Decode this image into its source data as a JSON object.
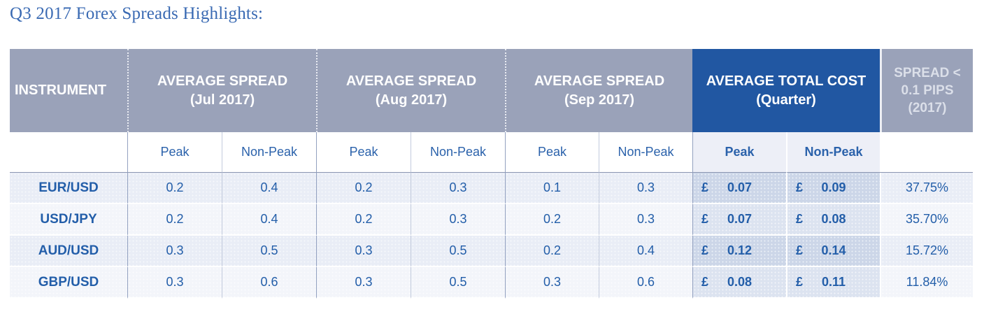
{
  "title": "Q3 2017 Forex Spreads Highlights:",
  "header": {
    "instrument": "INSTRUMENT",
    "jul": {
      "line1": "AVERAGE SPREAD",
      "line2": "(Jul 2017)"
    },
    "aug": {
      "line1": "AVERAGE SPREAD",
      "line2": "(Aug 2017)"
    },
    "sep": {
      "line1": "AVERAGE SPREAD",
      "line2": "(Sep 2017)"
    },
    "cost": {
      "line1": "AVERAGE TOTAL COST",
      "line2": "(Quarter)"
    },
    "pct": {
      "line1": "SPREAD <",
      "line2": "0.1 PIPS",
      "line3": "(2017)"
    }
  },
  "subheader": {
    "peak": "Peak",
    "non_peak": "Non-Peak"
  },
  "currency": "£",
  "rows": [
    {
      "instrument": "EUR/USD",
      "jul_peak": "0.2",
      "jul_non_peak": "0.4",
      "aug_peak": "0.2",
      "aug_non_peak": "0.3",
      "sep_peak": "0.1",
      "sep_non_peak": "0.3",
      "cost_peak": "0.07",
      "cost_non_peak": "0.09",
      "spread_pct": "37.75%"
    },
    {
      "instrument": "USD/JPY",
      "jul_peak": "0.2",
      "jul_non_peak": "0.4",
      "aug_peak": "0.2",
      "aug_non_peak": "0.3",
      "sep_peak": "0.2",
      "sep_non_peak": "0.3",
      "cost_peak": "0.07",
      "cost_non_peak": "0.08",
      "spread_pct": "35.70%"
    },
    {
      "instrument": "AUD/USD",
      "jul_peak": "0.3",
      "jul_non_peak": "0.5",
      "aug_peak": "0.3",
      "aug_non_peak": "0.5",
      "sep_peak": "0.2",
      "sep_non_peak": "0.4",
      "cost_peak": "0.12",
      "cost_non_peak": "0.14",
      "spread_pct": "15.72%"
    },
    {
      "instrument": "GBP/USD",
      "jul_peak": "0.3",
      "jul_non_peak": "0.6",
      "aug_peak": "0.3",
      "aug_non_peak": "0.5",
      "sep_peak": "0.3",
      "sep_non_peak": "0.6",
      "cost_peak": "0.08",
      "cost_non_peak": "0.11",
      "spread_pct": "11.84%"
    }
  ],
  "colors": {
    "header_gray": "#9aa2b9",
    "header_highlight_blue": "#2157a2",
    "header_text": "#ffffff",
    "pct_header_text": "#dbdfe9",
    "title_blue": "#3a6ab3",
    "data_text_blue": "#235ea9",
    "row_odd_bg": "#e9edf6",
    "row_even_bg": "#f3f5fa",
    "cost_odd_bg": "#ccd6e8",
    "cost_even_bg": "#dce3f0",
    "cost_subheader_bg": "#edeff7"
  },
  "chart_data": {
    "type": "table",
    "title": "Q3 2017 Forex Spreads Highlights:",
    "column_groups": [
      "INSTRUMENT",
      "AVERAGE SPREAD (Jul 2017)",
      "AVERAGE SPREAD (Aug 2017)",
      "AVERAGE SPREAD (Sep 2017)",
      "AVERAGE TOTAL COST (Quarter)",
      "SPREAD < 0.1 PIPS (2017)"
    ],
    "columns": [
      "Instrument",
      "Jul Peak",
      "Jul Non-Peak",
      "Aug Peak",
      "Aug Non-Peak",
      "Sep Peak",
      "Sep Non-Peak",
      "Cost Peak (£)",
      "Cost Non-Peak (£)",
      "Spread < 0.1 pips (2017)"
    ],
    "rows": [
      [
        "EUR/USD",
        0.2,
        0.4,
        0.2,
        0.3,
        0.1,
        0.3,
        0.07,
        0.09,
        "37.75%"
      ],
      [
        "USD/JPY",
        0.2,
        0.4,
        0.2,
        0.3,
        0.2,
        0.3,
        0.07,
        0.08,
        "35.70%"
      ],
      [
        "AUD/USD",
        0.3,
        0.5,
        0.3,
        0.5,
        0.2,
        0.4,
        0.12,
        0.14,
        "15.72%"
      ],
      [
        "GBP/USD",
        0.3,
        0.6,
        0.3,
        0.5,
        0.3,
        0.6,
        0.08,
        0.11,
        "11.84%"
      ]
    ]
  }
}
